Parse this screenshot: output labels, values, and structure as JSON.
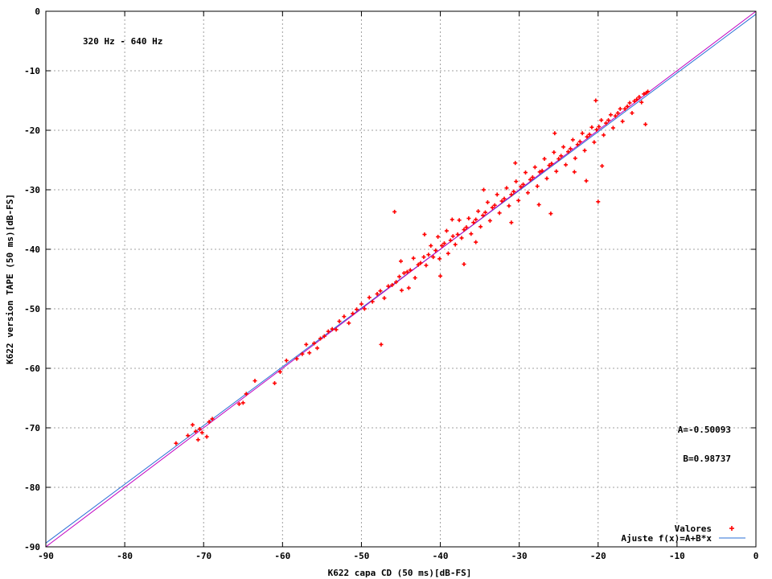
{
  "chart_data": {
    "type": "scatter",
    "title": "",
    "xlabel": "K622 capa CD (50 ms)[dB-FS]",
    "ylabel": "K622 version TAPE (50 ms)[dB-FS]",
    "xlim": [
      -90,
      0
    ],
    "ylim": [
      -90,
      0
    ],
    "x_ticks": [
      -90,
      -80,
      -70,
      -60,
      -50,
      -40,
      -30,
      -20,
      -10,
      0
    ],
    "y_ticks": [
      -90,
      -80,
      -70,
      -60,
      -50,
      -40,
      -30,
      -20,
      -10,
      0
    ],
    "grid": true,
    "legend_position": "bottom-right",
    "annotations": {
      "band": "320 Hz - 640 Hz",
      "coef_a": "A=-0.50093",
      "coef_b": "B=0.98737"
    },
    "series": [
      {
        "name": "Valores",
        "kind": "scatter",
        "color": "#ff0000",
        "points": [
          [
            -73.5,
            -72.6
          ],
          [
            -72.0,
            -71.3
          ],
          [
            -71.4,
            -69.5
          ],
          [
            -71.0,
            -70.6
          ],
          [
            -70.7,
            -72.0
          ],
          [
            -70.2,
            -70.8
          ],
          [
            -69.6,
            -71.5
          ],
          [
            -69.3,
            -69.0
          ],
          [
            -68.9,
            -68.5
          ],
          [
            -70.5,
            -70.2
          ],
          [
            -65.5,
            -66.0
          ],
          [
            -65.0,
            -65.8
          ],
          [
            -64.6,
            -64.3
          ],
          [
            -63.5,
            -62.1
          ],
          [
            -61.0,
            -62.5
          ],
          [
            -60.3,
            -60.6
          ],
          [
            -59.5,
            -58.7
          ],
          [
            -58.2,
            -58.4
          ],
          [
            -57.5,
            -57.6
          ],
          [
            -57.0,
            -56.0
          ],
          [
            -56.6,
            -57.4
          ],
          [
            -56.0,
            -55.8
          ],
          [
            -55.6,
            -56.6
          ],
          [
            -55.2,
            -55.0
          ],
          [
            -54.7,
            -54.6
          ],
          [
            -54.2,
            -53.8
          ],
          [
            -53.7,
            -53.4
          ],
          [
            -53.2,
            -53.5
          ],
          [
            -52.8,
            -52.1
          ],
          [
            -52.2,
            -51.3
          ],
          [
            -51.6,
            -52.4
          ],
          [
            -51.1,
            -50.8
          ],
          [
            -50.6,
            -50.1
          ],
          [
            -50.0,
            -49.2
          ],
          [
            -49.6,
            -50.0
          ],
          [
            -49.0,
            -48.1
          ],
          [
            -48.6,
            -48.8
          ],
          [
            -48.0,
            -47.5
          ],
          [
            -47.6,
            -47.0
          ],
          [
            -47.1,
            -48.2
          ],
          [
            -46.6,
            -46.2
          ],
          [
            -46.1,
            -46.0
          ],
          [
            -45.8,
            -33.7
          ],
          [
            -45.6,
            -45.5
          ],
          [
            -45.2,
            -44.6
          ],
          [
            -44.9,
            -46.9
          ],
          [
            -44.6,
            -44.0
          ],
          [
            -44.2,
            -43.8
          ],
          [
            -43.8,
            -43.5
          ],
          [
            -43.4,
            -41.5
          ],
          [
            -43.2,
            -44.8
          ],
          [
            -42.8,
            -42.6
          ],
          [
            -42.5,
            -42.3
          ],
          [
            -42.1,
            -41.3
          ],
          [
            -41.8,
            -42.7
          ],
          [
            -41.5,
            -40.9
          ],
          [
            -41.2,
            -39.4
          ],
          [
            -40.9,
            -41.3
          ],
          [
            -40.6,
            -40.2
          ],
          [
            -40.3,
            -37.9
          ],
          [
            -40.1,
            -41.6
          ],
          [
            -39.8,
            -39.4
          ],
          [
            -39.5,
            -39.0
          ],
          [
            -39.2,
            -36.9
          ],
          [
            -39.0,
            -40.7
          ],
          [
            -38.7,
            -38.5
          ],
          [
            -38.4,
            -37.8
          ],
          [
            -38.1,
            -39.2
          ],
          [
            -37.8,
            -37.5
          ],
          [
            -37.6,
            -35.1
          ],
          [
            -37.3,
            -38.1
          ],
          [
            -37.0,
            -36.7
          ],
          [
            -36.7,
            -36.3
          ],
          [
            -36.4,
            -34.8
          ],
          [
            -36.1,
            -37.4
          ],
          [
            -35.8,
            -35.5
          ],
          [
            -35.5,
            -35.0
          ],
          [
            -35.2,
            -33.6
          ],
          [
            -34.9,
            -36.2
          ],
          [
            -34.6,
            -34.3
          ],
          [
            -34.3,
            -33.8
          ],
          [
            -34.0,
            -32.1
          ],
          [
            -33.7,
            -35.2
          ],
          [
            -33.4,
            -33.0
          ],
          [
            -33.1,
            -32.6
          ],
          [
            -32.8,
            -30.8
          ],
          [
            -32.5,
            -33.9
          ],
          [
            -32.2,
            -31.9
          ],
          [
            -31.9,
            -31.5
          ],
          [
            -31.6,
            -29.7
          ],
          [
            -31.3,
            -32.7
          ],
          [
            -31.0,
            -30.8
          ],
          [
            -30.7,
            -30.3
          ],
          [
            -30.4,
            -28.6
          ],
          [
            -30.1,
            -31.8
          ],
          [
            -29.8,
            -29.5
          ],
          [
            -29.5,
            -29.1
          ],
          [
            -29.2,
            -27.1
          ],
          [
            -28.9,
            -30.5
          ],
          [
            -28.6,
            -28.3
          ],
          [
            -28.3,
            -27.9
          ],
          [
            -28.0,
            -26.2
          ],
          [
            -27.7,
            -29.4
          ],
          [
            -27.4,
            -27.0
          ],
          [
            -27.1,
            -26.8
          ],
          [
            -26.8,
            -24.8
          ],
          [
            -26.5,
            -28.1
          ],
          [
            -26.2,
            -25.9
          ],
          [
            -25.9,
            -25.6
          ],
          [
            -25.6,
            -23.7
          ],
          [
            -25.3,
            -26.9
          ],
          [
            -25.0,
            -24.8
          ],
          [
            -24.7,
            -24.3
          ],
          [
            -24.4,
            -22.8
          ],
          [
            -24.1,
            -25.8
          ],
          [
            -23.8,
            -23.6
          ],
          [
            -23.5,
            -23.1
          ],
          [
            -23.2,
            -21.6
          ],
          [
            -22.9,
            -24.7
          ],
          [
            -22.6,
            -22.4
          ],
          [
            -22.3,
            -21.9
          ],
          [
            -22.0,
            -20.5
          ],
          [
            -21.7,
            -23.4
          ],
          [
            -21.4,
            -21.1
          ],
          [
            -21.1,
            -20.7
          ],
          [
            -20.8,
            -19.5
          ],
          [
            -20.5,
            -22.0
          ],
          [
            -20.2,
            -19.9
          ],
          [
            -19.9,
            -19.4
          ],
          [
            -19.6,
            -18.3
          ],
          [
            -19.3,
            -20.8
          ],
          [
            -19.0,
            -18.8
          ],
          [
            -18.7,
            -18.3
          ],
          [
            -18.4,
            -17.4
          ],
          [
            -18.1,
            -19.6
          ],
          [
            -17.8,
            -17.6
          ],
          [
            -17.5,
            -17.1
          ],
          [
            -17.2,
            -16.4
          ],
          [
            -16.9,
            -18.5
          ],
          [
            -16.6,
            -16.4
          ],
          [
            -16.3,
            -16.0
          ],
          [
            -16.0,
            -15.4
          ],
          [
            -15.7,
            -17.1
          ],
          [
            -15.4,
            -15.1
          ],
          [
            -15.1,
            -14.8
          ],
          [
            -14.8,
            -14.4
          ],
          [
            -14.5,
            -15.3
          ],
          [
            -14.2,
            -13.9
          ],
          [
            -13.9,
            -13.7
          ],
          [
            -13.7,
            -13.5
          ],
          [
            -20.0,
            -32.0
          ],
          [
            -21.5,
            -28.5
          ],
          [
            -19.5,
            -26.0
          ],
          [
            -20.3,
            -15.0
          ],
          [
            -14.0,
            -19.0
          ],
          [
            -25.5,
            -20.5
          ],
          [
            -27.5,
            -32.5
          ],
          [
            -31.0,
            -35.5
          ],
          [
            -34.5,
            -30.0
          ],
          [
            -26.0,
            -34.0
          ],
          [
            -40.0,
            -44.5
          ],
          [
            -38.5,
            -35.0
          ],
          [
            -44.0,
            -46.5
          ],
          [
            -47.5,
            -56.0
          ],
          [
            -30.5,
            -25.5
          ],
          [
            -23.0,
            -27.0
          ],
          [
            -35.5,
            -38.8
          ],
          [
            -42.0,
            -37.5
          ],
          [
            -45.0,
            -42.0
          ],
          [
            -37.0,
            -42.5
          ]
        ]
      },
      {
        "name": "Ajuste f(x)=A+B*x",
        "kind": "line",
        "color": "#2a6fd6",
        "a": -0.50093,
        "b": 0.98737
      }
    ]
  }
}
